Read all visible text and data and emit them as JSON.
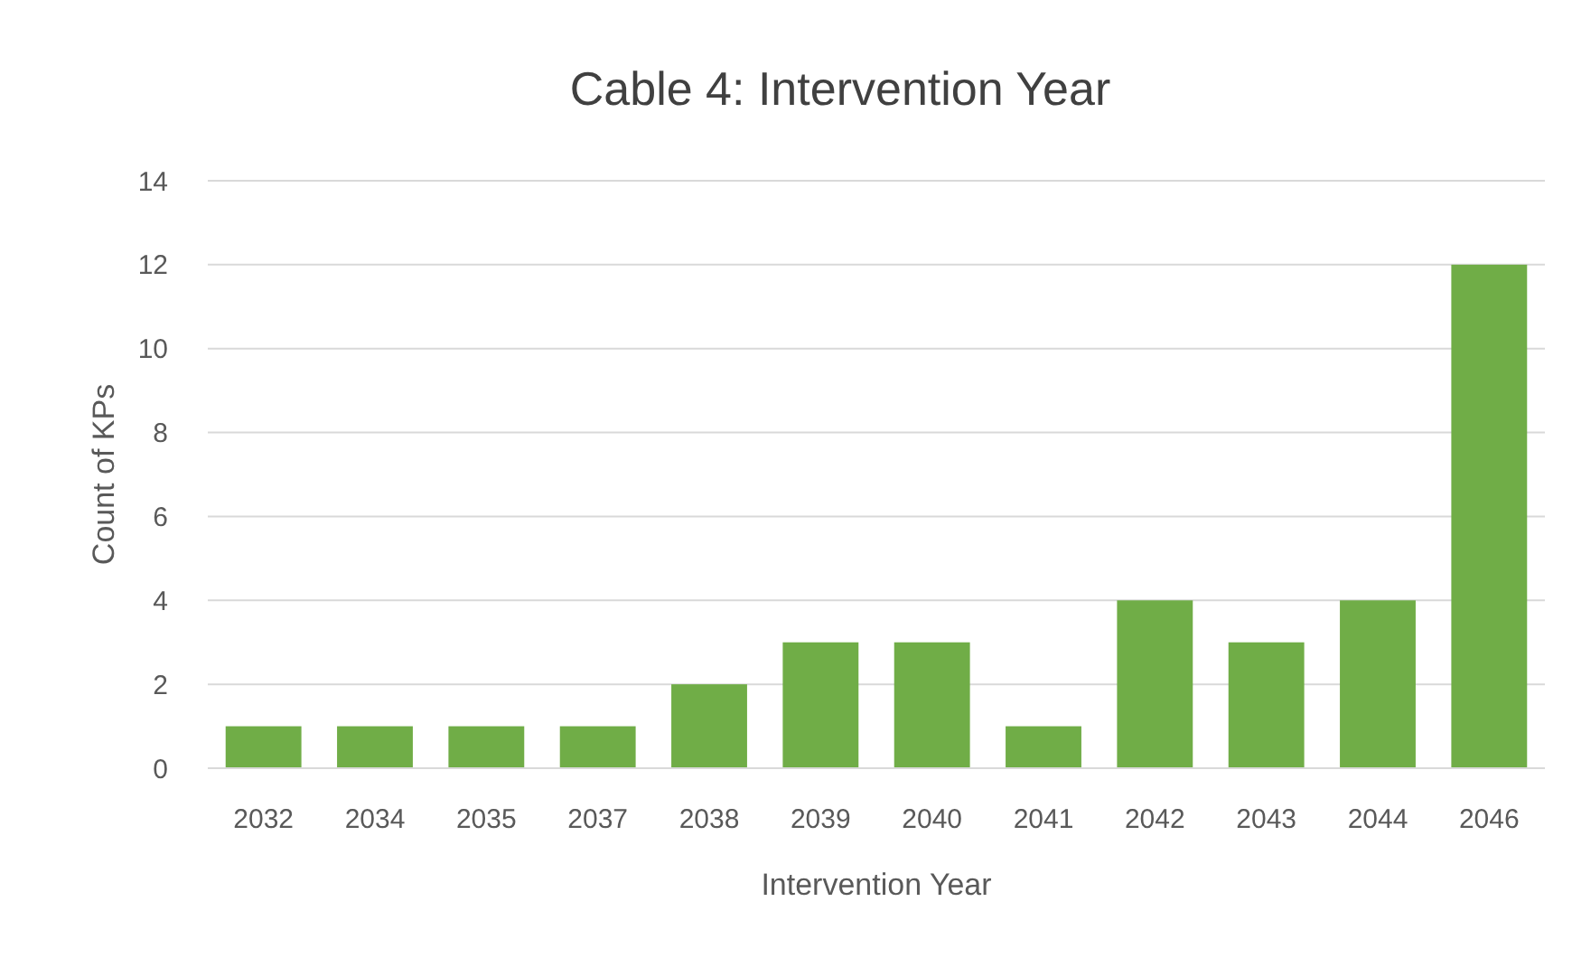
{
  "chart_data": {
    "type": "bar",
    "title": "Cable 4: Intervention Year",
    "xlabel": "Intervention Year",
    "ylabel": "Count of KPs",
    "categories": [
      "2032",
      "2034",
      "2035",
      "2037",
      "2038",
      "2039",
      "2040",
      "2041",
      "2042",
      "2043",
      "2044",
      "2046"
    ],
    "values": [
      1,
      1,
      1,
      1,
      2,
      3,
      3,
      1,
      4,
      3,
      4,
      12
    ],
    "color": "#70ad47",
    "ylim": [
      0,
      14
    ],
    "yticks": [
      0,
      2,
      4,
      6,
      8,
      10,
      12,
      14
    ],
    "grid": "y"
  }
}
